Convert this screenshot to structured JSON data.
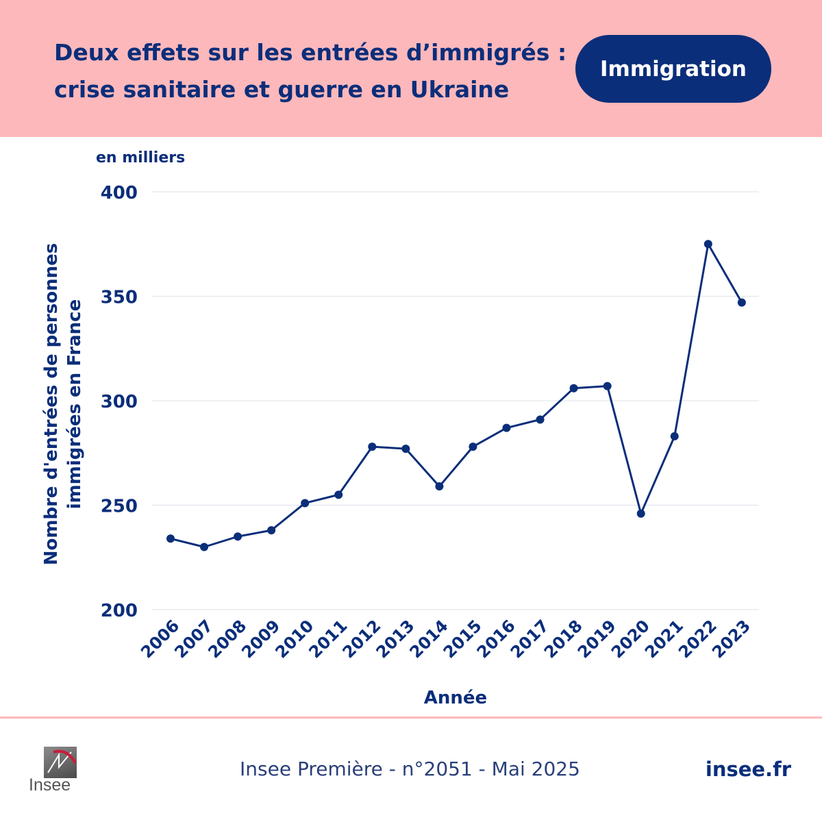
{
  "header": {
    "title_line1": "Deux effets sur les entrées d’immigrés :",
    "title_line2": "crise sanitaire et guerre en Ukraine",
    "badge": "Immigration"
  },
  "colors": {
    "header_bg": "#fdb8bb",
    "primary": "#0b2e7a",
    "grid": "#e3e6ee"
  },
  "chart_data": {
    "type": "line",
    "unit_label": "en milliers",
    "ylabel_line1": "Nombre d'entrées de personnes",
    "ylabel_line2": "immigrées en France",
    "xlabel": "Année",
    "ylim": [
      200,
      400
    ],
    "yticks": [
      200,
      250,
      300,
      350,
      400
    ],
    "x": [
      "2006",
      "2007",
      "2008",
      "2009",
      "2010",
      "2011",
      "2012",
      "2013",
      "2014",
      "2015",
      "2016",
      "2017",
      "2018",
      "2019",
      "2020",
      "2021",
      "2022",
      "2023"
    ],
    "series": [
      {
        "values": [
          234,
          230,
          235,
          238,
          251,
          255,
          278,
          277,
          259,
          278,
          287,
          291,
          306,
          307,
          246,
          283,
          375,
          347
        ]
      }
    ],
    "grid": true
  },
  "footer": {
    "logo_text": "Insee",
    "source": "Insee Première - n°2051 - Mai 2025",
    "site": "insee.fr"
  }
}
